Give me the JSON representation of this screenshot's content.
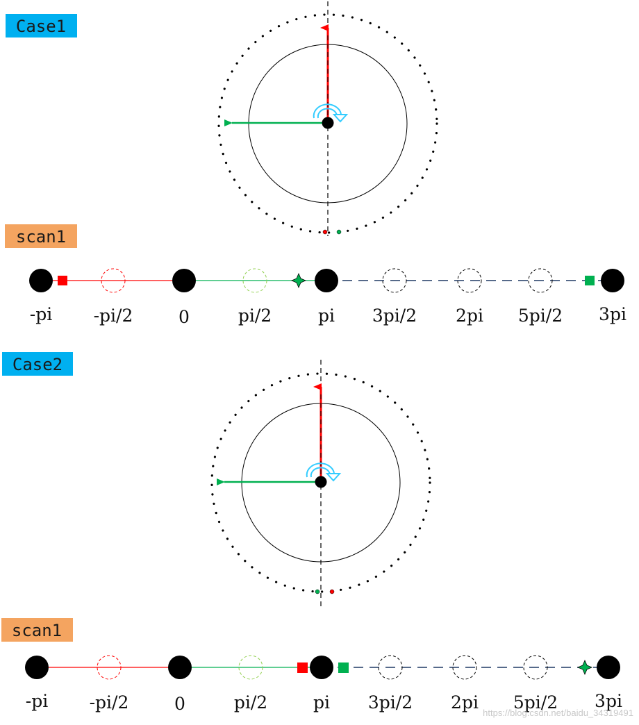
{
  "colors": {
    "case_badge": "#00b0f0",
    "scan_badge": "#f4a460",
    "red": "#ff0000",
    "green": "#00b050",
    "navy": "#1f3864",
    "light_green": "#92d050",
    "cyan": "#33ccff",
    "black": "#000000"
  },
  "icons": {
    "rotation": "clockwise-arrow-icon",
    "marker_square": "square-marker-icon",
    "marker_star": "four-point-star-icon"
  },
  "tick_labels": [
    "-pi",
    "-pi/2",
    "0",
    "pi/2",
    "pi",
    "3pi/2",
    "2pi",
    "5pi/2",
    "3pi"
  ],
  "case1": {
    "badge": "Case1",
    "scan_badge": "scan1",
    "scan_order": [
      "red-square",
      "green-star",
      "green-square"
    ]
  },
  "case2": {
    "badge": "Case2",
    "scan_badge": "scan1",
    "scan_order": [
      "red-square",
      "green-square",
      "green-star"
    ]
  },
  "watermark": "https://blog.csdn.net/baidu_34319491"
}
